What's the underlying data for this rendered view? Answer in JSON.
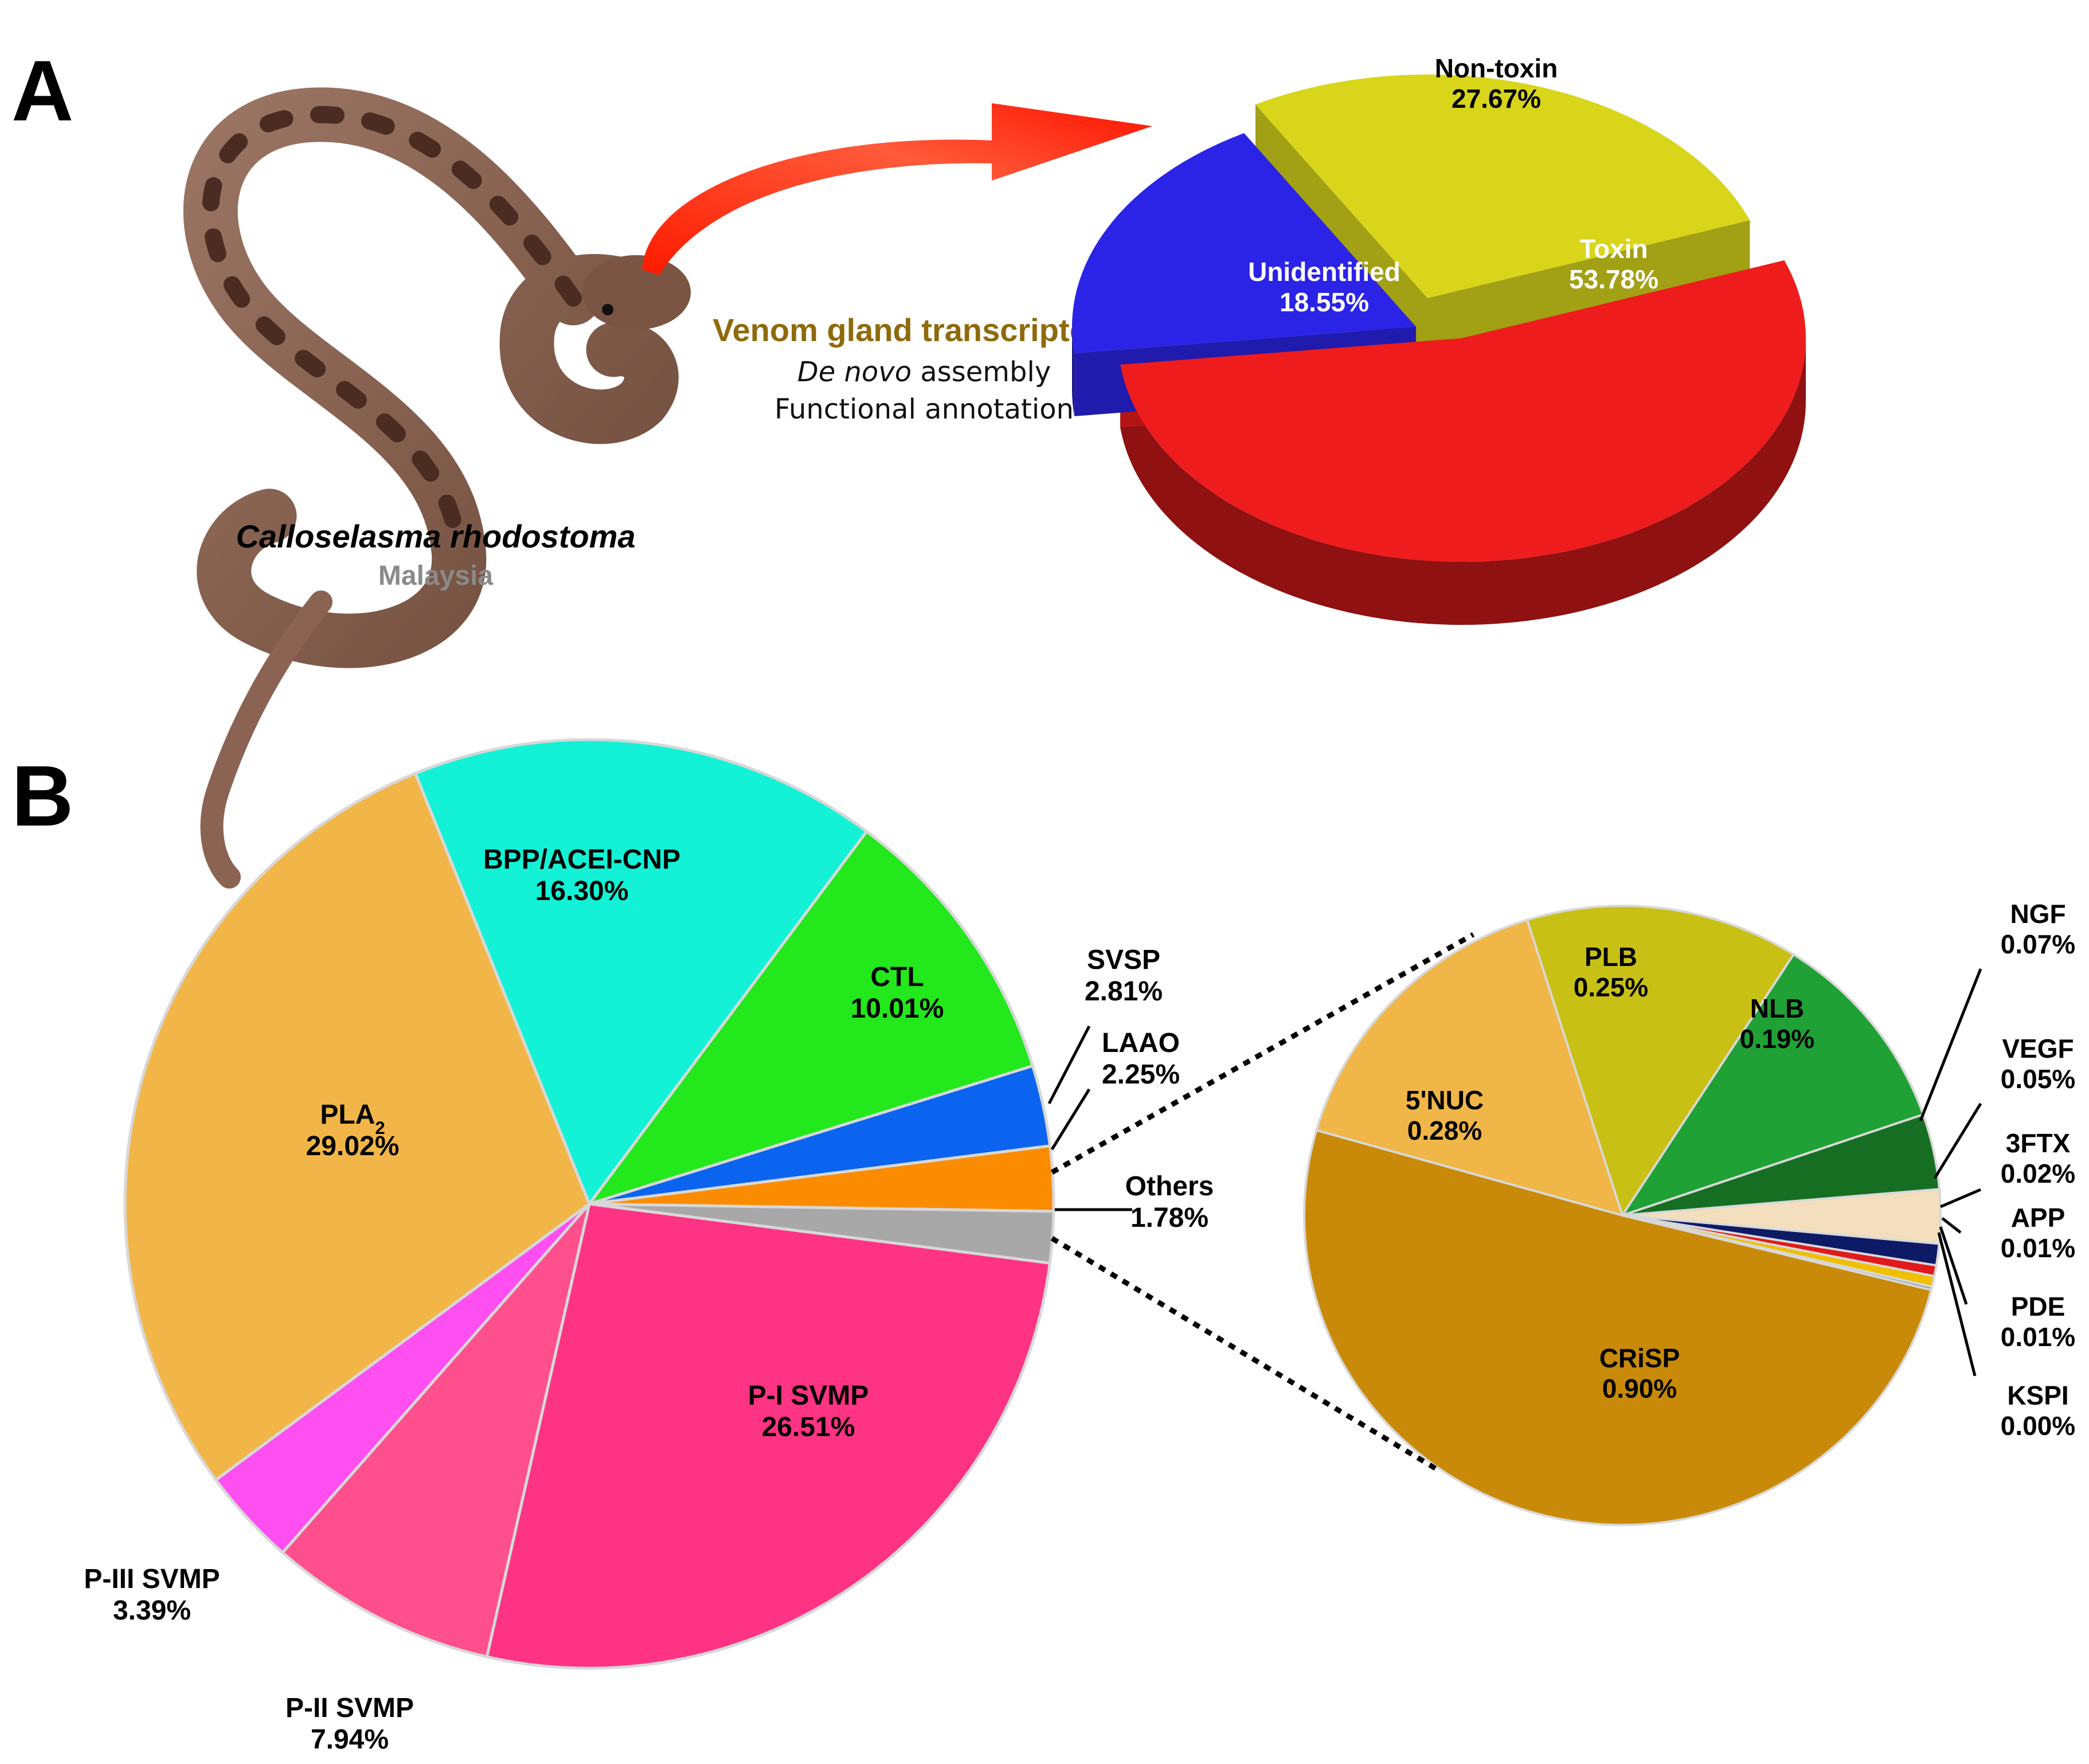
{
  "panel_a": {
    "letter": "A",
    "species": {
      "genus": "Calloselasma",
      "epithet": "rhodostoma",
      "locality": "Malaysia"
    },
    "workflow": {
      "title": "Venom gland transcriptome",
      "line2_italic": "De novo",
      "line2_rest": " assembly",
      "line3": "Functional annotation"
    }
  },
  "panel_b": {
    "letter": "B"
  },
  "colors": {
    "toxin": "#ee1c1c",
    "non_toxin": "#d8d51a",
    "unidentified": "#2b23e6",
    "workflow_title": "#8f6a0c",
    "locality": "#8a8a8a",
    "arrow": "#ff2a10"
  },
  "chart_data": [
    {
      "type": "pie",
      "style": "3d-exploded",
      "slices": [
        {
          "label": "Non-toxin",
          "value": 27.67,
          "pct": "27.67%",
          "color": "#d8d51a"
        },
        {
          "label": "Toxin",
          "value": 53.78,
          "pct": "53.78%",
          "color": "#ee1c1c"
        },
        {
          "label": "Unidentified",
          "value": 18.55,
          "pct": "18.55%",
          "color": "#2b23e6"
        }
      ]
    },
    {
      "type": "pie",
      "slices": [
        {
          "label": "BPP/ACEI-CNP",
          "value": 16.3,
          "pct": "16.30%",
          "color": "#13f2d6"
        },
        {
          "label": "CTL",
          "value": 10.01,
          "pct": "10.01%",
          "color": "#22e81c"
        },
        {
          "label": "SVSP",
          "value": 2.81,
          "pct": "2.81%",
          "color": "#0a64f0"
        },
        {
          "label": "LAAO",
          "value": 2.25,
          "pct": "2.25%",
          "color": "#fb8c00"
        },
        {
          "label": "Others",
          "value": 1.78,
          "pct": "1.78%",
          "color": "#a8a8a8"
        },
        {
          "label": "P-I SVMP",
          "value": 26.51,
          "pct": "26.51%",
          "color": "#ff3383"
        },
        {
          "label": "P-II SVMP",
          "value": 7.94,
          "pct": "7.94%",
          "color": "#ff4f8c"
        },
        {
          "label": "P-III SVMP",
          "value": 3.39,
          "pct": "3.39%",
          "color": "#ff4ff0"
        },
        {
          "label": "PLA",
          "label_sub": "2",
          "value": 29.02,
          "pct": "29.02%",
          "color": "#f2b648"
        }
      ]
    },
    {
      "type": "pie",
      "title": "",
      "slices": [
        {
          "label": "PLB",
          "value": 0.25,
          "pct": "0.25%",
          "color": "#c9c015"
        },
        {
          "label": "NLB",
          "value": 0.19,
          "pct": "0.19%",
          "color": "#1fa135"
        },
        {
          "label": "NGF",
          "value": 0.07,
          "pct": "0.07%",
          "color": "#166e22"
        },
        {
          "label": "VEGF",
          "value": 0.05,
          "pct": "0.05%",
          "color": "#f3dfbd"
        },
        {
          "label": "3FTX",
          "value": 0.02,
          "pct": "0.02%",
          "color": "#0d1a66"
        },
        {
          "label": "APP",
          "value": 0.01,
          "pct": "0.01%",
          "color": "#e01a1a"
        },
        {
          "label": "PDE",
          "value": 0.01,
          "pct": "0.01%",
          "color": "#f0c000"
        },
        {
          "label": "KSPI",
          "value": 0.0,
          "pct": "0.00%",
          "color": "#7f8fa6"
        },
        {
          "label": "CRiSP",
          "value": 0.9,
          "pct": "0.90%",
          "color": "#c88a08"
        },
        {
          "label": "5'NUC",
          "value": 0.28,
          "pct": "0.28%",
          "color": "#f0b648"
        }
      ]
    }
  ]
}
